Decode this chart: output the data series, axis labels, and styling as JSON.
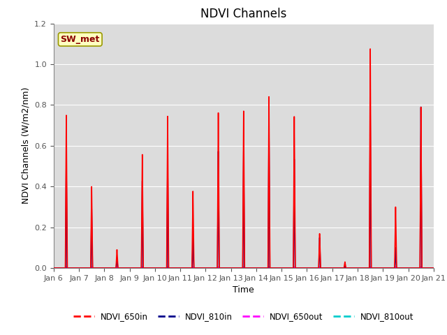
{
  "title": "NDVI Channels",
  "xlabel": "Time",
  "ylabel": "NDVI Channels (W/m2/nm)",
  "annotation": "SW_met",
  "ylim": [
    0,
    1.2
  ],
  "yticks": [
    0.0,
    0.2,
    0.4,
    0.6,
    0.8,
    1.0,
    1.2
  ],
  "colors": {
    "NDVI_650in": "#FF0000",
    "NDVI_810in": "#00008B",
    "NDVI_650out": "#FF00FF",
    "NDVI_810out": "#00CCCC"
  },
  "spike_data": {
    "days": [
      1,
      2,
      3,
      4,
      5,
      6,
      7,
      8,
      9,
      10,
      11,
      12,
      13,
      14,
      15
    ],
    "NDVI_650in": [
      0.75,
      0.4,
      0.09,
      0.56,
      0.75,
      0.38,
      0.77,
      0.78,
      0.85,
      0.75,
      0.17,
      0.03,
      1.08,
      0.3,
      0.79
    ],
    "NDVI_810in": [
      0.53,
      0.29,
      0.05,
      0.43,
      0.52,
      0.15,
      0.58,
      0.58,
      0.7,
      0.54,
      0.15,
      0.01,
      0.78,
      0.1,
      0.79
    ],
    "NDVI_650out": [
      0.005,
      0.005,
      0.005,
      0.005,
      0.005,
      0.005,
      0.005,
      0.005,
      0.005,
      0.005,
      0.005,
      0.005,
      0.005,
      0.005,
      0.005
    ],
    "NDVI_810out": [
      0.005,
      0.005,
      0.005,
      0.005,
      0.005,
      0.005,
      0.005,
      0.005,
      0.005,
      0.005,
      0.005,
      0.005,
      0.005,
      0.005,
      0.005
    ]
  },
  "xtick_labels": [
    "Jan 6",
    "Jan 7",
    "Jan 8",
    "Jan 9",
    "Jan 10",
    "Jan 11",
    "Jan 12",
    "Jan 13",
    "Jan 14",
    "Jan 15",
    "Jan 16",
    "Jan 17",
    "Jan 18",
    "Jan 19",
    "Jan 20",
    "Jan 21"
  ],
  "xtick_positions": [
    0,
    1,
    2,
    3,
    4,
    5,
    6,
    7,
    8,
    9,
    10,
    11,
    12,
    13,
    14,
    15
  ],
  "background_color": "#DCDCDC",
  "title_fontsize": 12,
  "axis_label_fontsize": 9,
  "tick_fontsize": 8
}
